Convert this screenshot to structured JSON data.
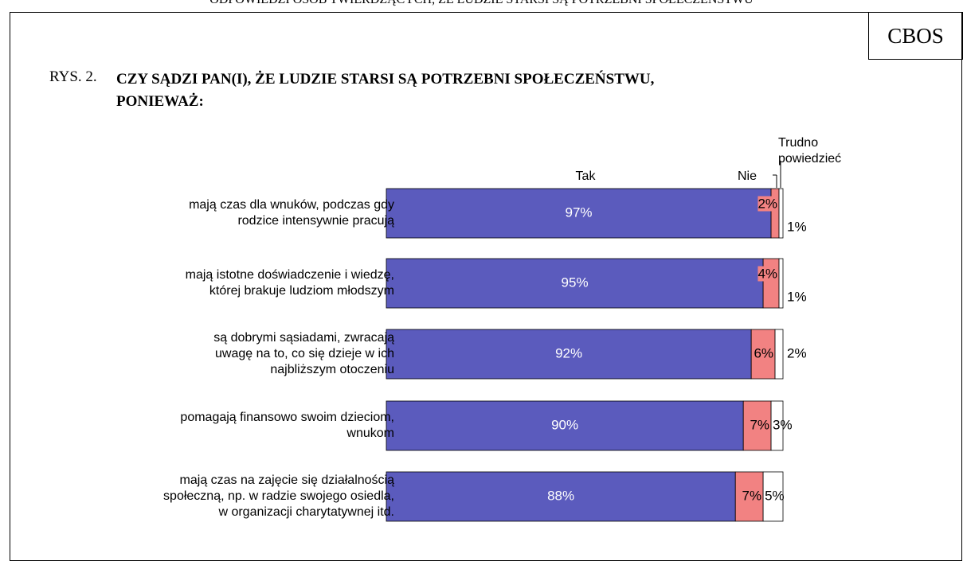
{
  "chart_data": {
    "type": "bar",
    "orientation": "horizontal",
    "stacked": true,
    "header": "ODPOWIEDZI OSÓB TWIERDZĄCYCH, ŻE LUDZIE STARSI SĄ POTRZEBNI SPOŁECZEŃSTWU",
    "source": "CBOS",
    "title_prefix": "RYS. 2.",
    "title": "CZY SĄDZI PAN(I), ŻE LUDZIE STARSI SĄ POTRZEBNI SPOŁECZEŃSTWU,\nPONIEWAŻ:",
    "categories": [
      "mają czas dla wnuków, podczas gdy\nrodzice intensywnie pracują",
      "mają istotne doświadczenie i wiedzę,\nktórej brakuje ludziom młodszym",
      "są dobrymi sąsiadami, zwracają\nuwagę na to, co się dzieje w ich\nnajbliższym otoczeniu",
      "pomagają finansowo swoim dzieciom,\nwnukom",
      "mają czas na zajęcie się działalnością\nspołeczną, np. w radzie swojego osiedla,\nw organizacji charytatywnej itd."
    ],
    "series": [
      {
        "name": "Tak",
        "color": "#5b5bbd",
        "values": [
          97,
          95,
          92,
          90,
          88
        ],
        "value_labels": [
          "97%",
          "95%",
          "92%",
          "90%",
          "88%"
        ]
      },
      {
        "name": "Nie",
        "color": "#f28282",
        "values": [
          2,
          4,
          6,
          7,
          7
        ],
        "value_labels": [
          "2%",
          "4%",
          "6%",
          "7%",
          "7%"
        ]
      },
      {
        "name": "Trudno\npowiedzieć",
        "color": "#ffffff",
        "values": [
          1,
          1,
          2,
          3,
          5
        ],
        "value_labels": [
          "1%",
          "1%",
          "2%",
          "3%",
          "5%"
        ]
      }
    ],
    "xlim": [
      0,
      100
    ]
  }
}
